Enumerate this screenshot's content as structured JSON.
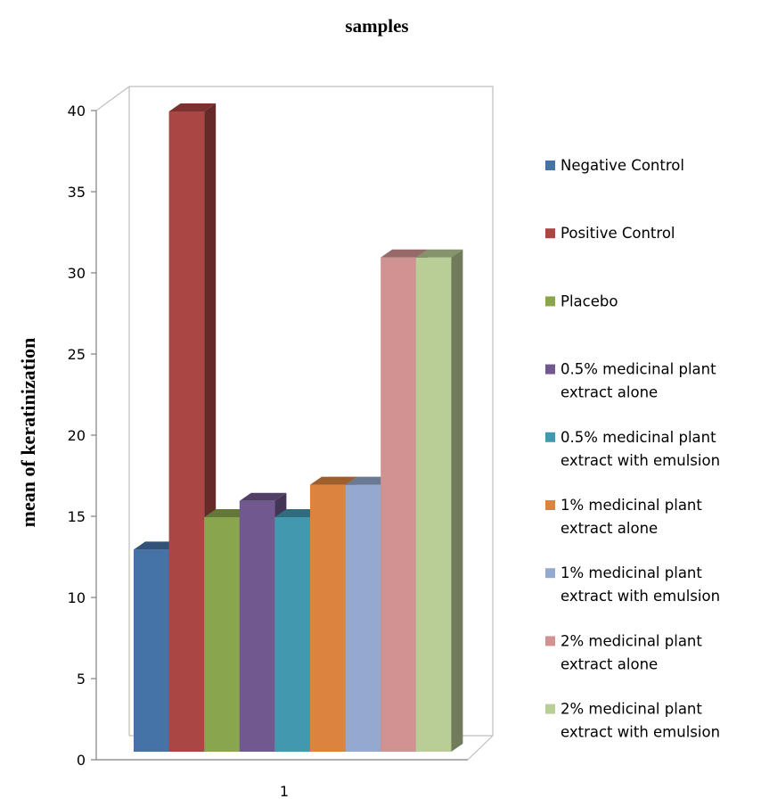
{
  "chart_data": {
    "type": "bar",
    "title": "samples",
    "xlabel": "",
    "ylabel": "mean of keratinization",
    "categories": [
      "1"
    ],
    "ylim": [
      0,
      40
    ],
    "yticks": [
      0,
      5,
      10,
      15,
      20,
      25,
      30,
      35,
      40
    ],
    "grid": false,
    "legend_position": "right",
    "series": [
      {
        "name": "Negative Control",
        "values": [
          13
        ],
        "color": "#4572a7"
      },
      {
        "name": "Positive Control",
        "values": [
          40
        ],
        "color": "#aa4643"
      },
      {
        "name": "Placebo",
        "values": [
          15
        ],
        "color": "#89a54e"
      },
      {
        "name": "0.5% medicinal plant extract alone",
        "values": [
          16
        ],
        "color": "#71588f"
      },
      {
        "name": "0.5% medicinal plant extract with emulsion",
        "values": [
          15
        ],
        "color": "#4198af"
      },
      {
        "name": "1% medicinal plant extract alone",
        "values": [
          17
        ],
        "color": "#db843d"
      },
      {
        "name": "1% medicinal plant extract with emulsion",
        "values": [
          17
        ],
        "color": "#93a9cf"
      },
      {
        "name": "2% medicinal plant extract alone",
        "values": [
          31
        ],
        "color": "#d19392"
      },
      {
        "name": "2% medicinal plant extract with emulsion",
        "values": [
          31
        ],
        "color": "#b9cd96"
      }
    ]
  }
}
